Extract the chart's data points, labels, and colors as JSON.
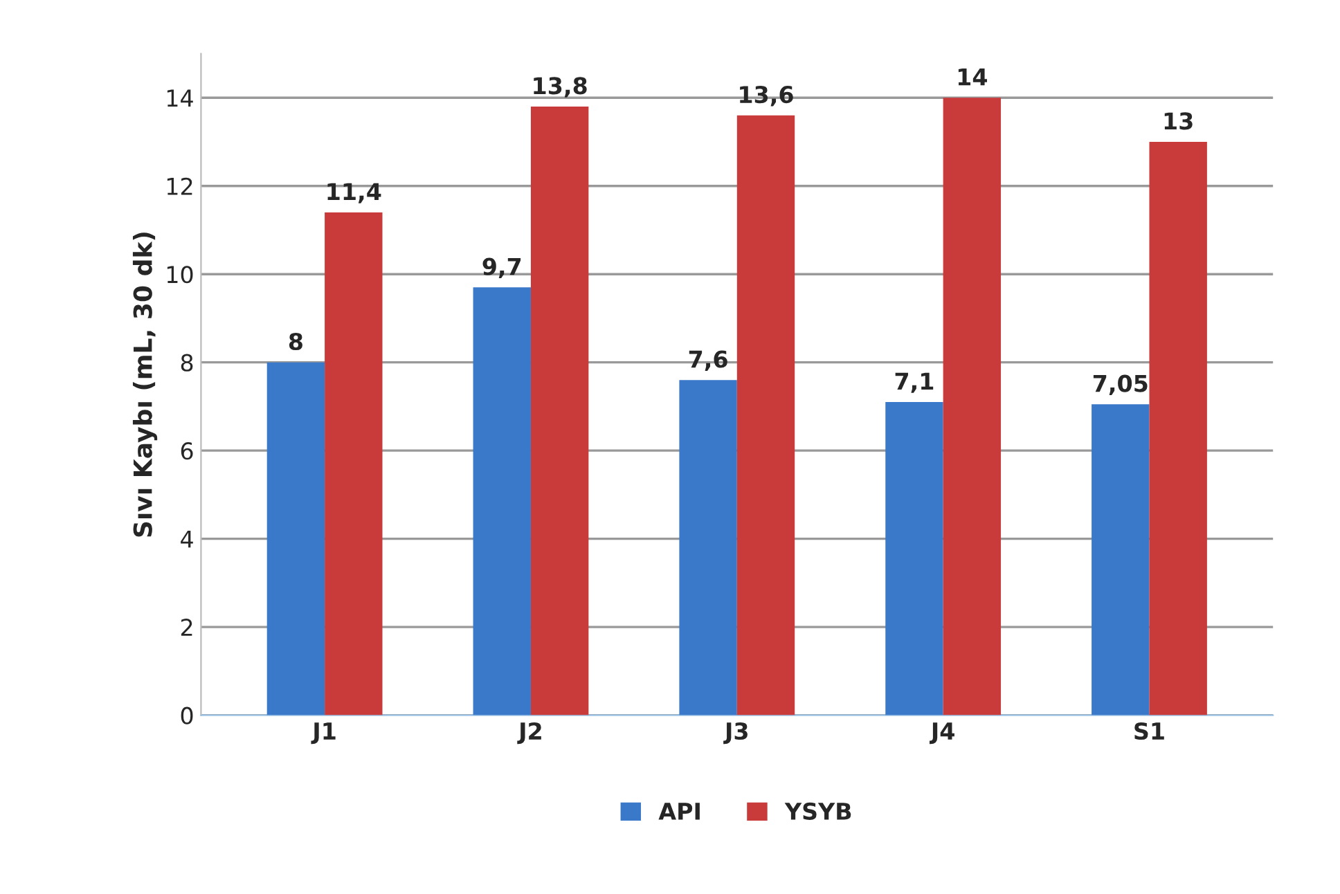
{
  "chart_data": {
    "type": "bar",
    "ylabel": "Sıvı Kaybı (mL, 30 dk)",
    "categories": [
      "J1",
      "J2",
      "J3",
      "J4",
      "S1"
    ],
    "series": [
      {
        "name": "API",
        "color": "#3a78c9",
        "values": [
          8,
          9.7,
          7.6,
          7.1,
          7.05
        ],
        "value_labels": [
          "8",
          "9,7",
          "7,6",
          "7,1",
          "7,05"
        ]
      },
      {
        "name": "YSYB",
        "color": "#c93a3a",
        "values": [
          11.4,
          13.8,
          13.6,
          14,
          13
        ],
        "value_labels": [
          "11,4",
          "13,8",
          "13,6",
          "14",
          "13"
        ]
      }
    ],
    "ylim": [
      0,
      15
    ],
    "yticks": [
      0,
      2,
      4,
      6,
      8,
      10,
      12,
      14
    ],
    "grid": "y",
    "legend": "bottom"
  }
}
